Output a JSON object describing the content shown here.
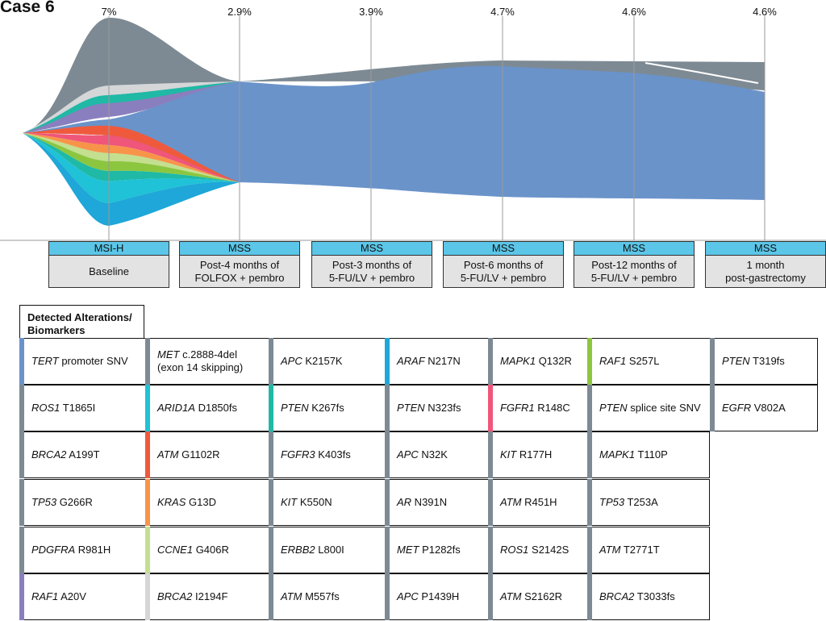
{
  "case_title": "Case 6",
  "colors": {
    "mss_blue": "#6a93ca",
    "other_gray": "#7d8a94",
    "header_cyan": "#5bc6e8",
    "label_gray": "#e3e3e3"
  },
  "timepoints": [
    {
      "pct": "7%",
      "status": "MSI-H",
      "label1": "Baseline",
      "label2": ""
    },
    {
      "pct": "2.9%",
      "status": "MSS",
      "label1": "Post-4 months of",
      "label2": "FOLFOX + pembro"
    },
    {
      "pct": "3.9%",
      "status": "MSS",
      "label1": "Post-3 months of",
      "label2": "5-FU/LV + pembro"
    },
    {
      "pct": "4.7%",
      "status": "MSS",
      "label1": "Post-6 months of",
      "label2": "5-FU/LV + pembro"
    },
    {
      "pct": "4.6%",
      "status": "MSS",
      "label1": "Post-12 months of",
      "label2": "5-FU/LV + pembro"
    },
    {
      "pct": "4.6%",
      "status": "MSS",
      "label1": "1 month",
      "label2": "post-gastrectomy"
    }
  ],
  "legend_title_1": "Detected Alterations/",
  "legend_title_2": "Biomarkers",
  "alterations": [
    [
      {
        "gene": "TERT",
        "rest": " promoter SNV",
        "line2": "",
        "color": "#6a93ca"
      },
      {
        "gene": "MET",
        "rest": " c.2888-4del",
        "line2": "(exon 14 skipping)",
        "color": "#7d8a94"
      },
      {
        "gene": "APC",
        "rest": " K2157K",
        "line2": "",
        "color": "#7d8a94"
      },
      {
        "gene": "ARAF",
        "rest": " N217N",
        "line2": "",
        "color": "#1ea7d8"
      },
      {
        "gene": "MAPK1",
        "rest": " Q132R",
        "line2": "",
        "color": "#7d8a94"
      },
      {
        "gene": "RAF1",
        "rest": " S257L",
        "line2": "",
        "color": "#8cc63f"
      },
      {
        "gene": "PTEN",
        "rest": " T319fs",
        "line2": "",
        "color": "#7d8a94"
      }
    ],
    [
      {
        "gene": "ROS1",
        "rest": " T1865I",
        "line2": "",
        "color": "#7d8a94"
      },
      {
        "gene": "ARID1A",
        "rest": " D1850fs",
        "line2": "",
        "color": "#1fc2d6"
      },
      {
        "gene": "PTEN",
        "rest": " K267fs",
        "line2": "",
        "color": "#1fb9a6"
      },
      {
        "gene": "PTEN",
        "rest": " N323fs",
        "line2": "",
        "color": "#7d8a94"
      },
      {
        "gene": "FGFR1",
        "rest": " R148C",
        "line2": "",
        "color": "#f0557a"
      },
      {
        "gene": "PTEN",
        "rest": " splice site SNV",
        "line2": "",
        "color": "#7d8a94"
      },
      {
        "gene": "EGFR",
        "rest": " V802A",
        "line2": "",
        "color": "#7d8a94"
      }
    ],
    [
      {
        "gene": "BRCA2",
        "rest": " A199T",
        "line2": "",
        "color": "#7d8a94"
      },
      {
        "gene": "ATM",
        "rest": " G1102R",
        "line2": "",
        "color": "#f05a3c"
      },
      {
        "gene": "FGFR3",
        "rest": " K403fs",
        "line2": "",
        "color": "#7d8a94"
      },
      {
        "gene": "APC",
        "rest": " N32K",
        "line2": "",
        "color": "#7d8a94"
      },
      {
        "gene": "KIT",
        "rest": " R177H",
        "line2": "",
        "color": "#7d8a94"
      },
      {
        "gene": "MAPK1",
        "rest": " T110P",
        "line2": "",
        "color": "#7d8a94"
      }
    ],
    [
      {
        "gene": "TP53",
        "rest": " G266R",
        "line2": "",
        "color": "#7d8a94"
      },
      {
        "gene": "KRAS",
        "rest": " G13D",
        "line2": "",
        "color": "#f7944a"
      },
      {
        "gene": "KIT",
        "rest": " K550N",
        "line2": "",
        "color": "#7d8a94"
      },
      {
        "gene": "AR",
        "rest": " N391N",
        "line2": "",
        "color": "#7d8a94"
      },
      {
        "gene": "ATM",
        "rest": " R451H",
        "line2": "",
        "color": "#7d8a94"
      },
      {
        "gene": "TP53",
        "rest": " T253A",
        "line2": "",
        "color": "#7d8a94"
      }
    ],
    [
      {
        "gene": "PDGFRA",
        "rest": " R981H",
        "line2": "",
        "color": "#7d8a94"
      },
      {
        "gene": "CCNE1",
        "rest": " G406R",
        "line2": "",
        "color": "#c3df8f"
      },
      {
        "gene": "ERBB2",
        "rest": " L800I",
        "line2": "",
        "color": "#7d8a94"
      },
      {
        "gene": "MET",
        "rest": " P1282fs",
        "line2": "",
        "color": "#7d8a94"
      },
      {
        "gene": "ROS1",
        "rest": " S2142S",
        "line2": "",
        "color": "#7d8a94"
      },
      {
        "gene": "ATM",
        "rest": " T2771T",
        "line2": "",
        "color": "#7d8a94"
      }
    ],
    [
      {
        "gene": "RAF1",
        "rest": " A20V",
        "line2": "",
        "color": "#8a7fbe"
      },
      {
        "gene": "BRCA2",
        "rest": " I2194F",
        "line2": "",
        "color": "#d4d6d8"
      },
      {
        "gene": "ATM",
        "rest": " M557fs",
        "line2": "",
        "color": "#7d8a94"
      },
      {
        "gene": "APC",
        "rest": " P1439H",
        "line2": "",
        "color": "#7d8a94"
      },
      {
        "gene": "ATM",
        "rest": " S2162R",
        "line2": "",
        "color": "#7d8a94"
      },
      {
        "gene": "BRCA2",
        "rest": " T3033fs",
        "line2": "",
        "color": "#7d8a94"
      }
    ]
  ]
}
